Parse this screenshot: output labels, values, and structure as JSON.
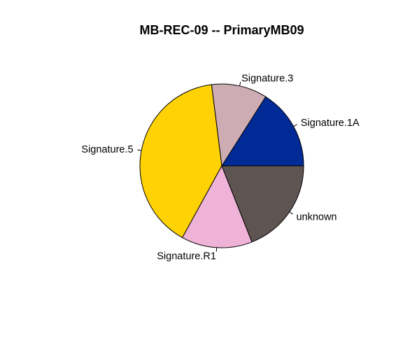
{
  "chart_data": {
    "type": "pie",
    "title": "MB-REC-09 -- PrimaryMB09",
    "slices": [
      {
        "label": "Signature.1A",
        "value": 16,
        "color": "#002A96"
      },
      {
        "label": "Signature.3",
        "value": 11,
        "color": "#CDADB3"
      },
      {
        "label": "Signature.5",
        "value": 40,
        "color": "#FFD205"
      },
      {
        "label": "Signature.R1",
        "value": 14,
        "color": "#F0B3D8"
      },
      {
        "label": "unknown",
        "value": 19,
        "color": "#5E5452"
      }
    ],
    "start_angle_deg": 0,
    "direction": "counterclockwise"
  }
}
